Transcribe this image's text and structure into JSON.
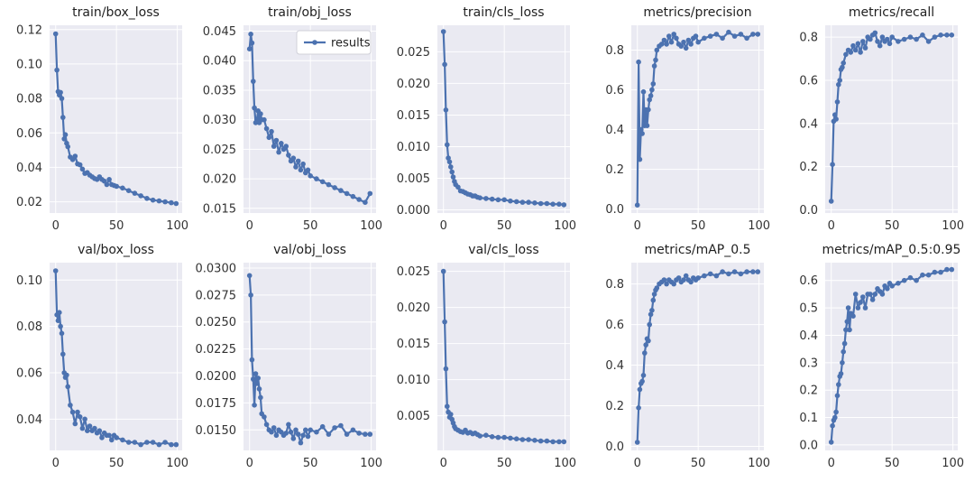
{
  "figure": {
    "legend_label": "results",
    "series_color": "#4c72b0",
    "background_color": "#eaeaf2",
    "grid_color": "#ffffff"
  },
  "chart_data": [
    {
      "type": "line",
      "title": "train/box_loss",
      "x": [
        0,
        1,
        2,
        3,
        4,
        5,
        6,
        7,
        8,
        9,
        10,
        12,
        14,
        16,
        18,
        20,
        22,
        24,
        26,
        28,
        30,
        32,
        34,
        36,
        38,
        40,
        42,
        44,
        46,
        48,
        50,
        55,
        60,
        65,
        70,
        75,
        80,
        85,
        90,
        95,
        99
      ],
      "values": [
        0.1175,
        0.0965,
        0.084,
        0.082,
        0.0835,
        0.08,
        0.069,
        0.0565,
        0.059,
        0.054,
        0.052,
        0.046,
        0.0445,
        0.0465,
        0.042,
        0.0415,
        0.039,
        0.0365,
        0.037,
        0.0355,
        0.0345,
        0.0335,
        0.033,
        0.0345,
        0.033,
        0.032,
        0.03,
        0.033,
        0.03,
        0.0295,
        0.029,
        0.028,
        0.0265,
        0.025,
        0.0235,
        0.022,
        0.021,
        0.0205,
        0.02,
        0.0195,
        0.019
      ],
      "xticks": [
        0,
        50,
        100
      ],
      "yticks": [
        0.02,
        0.04,
        0.06,
        0.08,
        0.1,
        0.12
      ],
      "ytick_labels": [
        "0.02",
        "0.04",
        "0.06",
        "0.08",
        "0.10",
        "0.12"
      ],
      "xlim": [
        -5,
        104
      ],
      "ylim": [
        0.0135,
        0.1225
      ],
      "legend": false
    },
    {
      "type": "line",
      "title": "train/obj_loss",
      "x": [
        0,
        1,
        2,
        3,
        4,
        5,
        6,
        7,
        8,
        9,
        10,
        12,
        14,
        16,
        18,
        20,
        22,
        24,
        26,
        28,
        30,
        32,
        34,
        36,
        38,
        40,
        42,
        44,
        46,
        48,
        50,
        55,
        60,
        65,
        70,
        75,
        80,
        85,
        90,
        95,
        99
      ],
      "values": [
        0.042,
        0.0445,
        0.043,
        0.0365,
        0.032,
        0.0295,
        0.03,
        0.0315,
        0.0295,
        0.031,
        0.03,
        0.03,
        0.0285,
        0.027,
        0.028,
        0.0255,
        0.0265,
        0.0245,
        0.026,
        0.025,
        0.0255,
        0.024,
        0.023,
        0.0235,
        0.022,
        0.023,
        0.0215,
        0.0225,
        0.021,
        0.0215,
        0.0205,
        0.02,
        0.0195,
        0.019,
        0.0185,
        0.018,
        0.0175,
        0.017,
        0.0165,
        0.016,
        0.0175
      ],
      "xticks": [
        0,
        50,
        100
      ],
      "yticks": [
        0.015,
        0.02,
        0.025,
        0.03,
        0.035,
        0.04,
        0.045
      ],
      "ytick_labels": [
        "0.015",
        "0.020",
        "0.025",
        "0.030",
        "0.035",
        "0.040",
        "0.045"
      ],
      "xlim": [
        -5,
        104
      ],
      "ylim": [
        0.0142,
        0.046
      ],
      "legend": true,
      "legend_position": "top-right"
    },
    {
      "type": "line",
      "title": "train/cls_loss",
      "x": [
        0,
        1,
        2,
        3,
        4,
        5,
        6,
        7,
        8,
        9,
        10,
        12,
        14,
        16,
        18,
        20,
        22,
        24,
        26,
        28,
        30,
        35,
        40,
        45,
        50,
        55,
        60,
        65,
        70,
        75,
        80,
        85,
        90,
        95,
        99
      ],
      "values": [
        0.0282,
        0.023,
        0.0158,
        0.0103,
        0.0082,
        0.0076,
        0.0068,
        0.006,
        0.0052,
        0.0045,
        0.004,
        0.0036,
        0.003,
        0.0029,
        0.0027,
        0.0025,
        0.0024,
        0.0022,
        0.0022,
        0.002,
        0.0019,
        0.0018,
        0.0017,
        0.0016,
        0.0016,
        0.0014,
        0.0013,
        0.0012,
        0.0012,
        0.0011,
        0.001,
        0.001,
        0.0009,
        0.0009,
        0.0008
      ],
      "xticks": [
        0,
        50,
        100
      ],
      "yticks": [
        0.0,
        0.005,
        0.01,
        0.015,
        0.02,
        0.025
      ],
      "ytick_labels": [
        "0.000",
        "0.005",
        "0.010",
        "0.015",
        "0.020",
        "0.025"
      ],
      "xlim": [
        -5,
        104
      ],
      "ylim": [
        -0.0005,
        0.0292
      ],
      "legend": false
    },
    {
      "type": "line",
      "title": "metrics/precision",
      "x": [
        0,
        1,
        2,
        3,
        4,
        5,
        6,
        7,
        8,
        9,
        10,
        11,
        12,
        13,
        14,
        15,
        16,
        18,
        20,
        22,
        24,
        26,
        28,
        30,
        32,
        34,
        36,
        38,
        40,
        42,
        44,
        46,
        48,
        50,
        55,
        60,
        65,
        70,
        75,
        80,
        85,
        90,
        95,
        99
      ],
      "values": [
        0.02,
        0.74,
        0.25,
        0.4,
        0.38,
        0.59,
        0.42,
        0.5,
        0.42,
        0.5,
        0.55,
        0.57,
        0.6,
        0.63,
        0.72,
        0.75,
        0.8,
        0.82,
        0.83,
        0.85,
        0.83,
        0.87,
        0.84,
        0.88,
        0.86,
        0.83,
        0.82,
        0.84,
        0.81,
        0.85,
        0.83,
        0.86,
        0.87,
        0.84,
        0.86,
        0.87,
        0.88,
        0.86,
        0.89,
        0.87,
        0.88,
        0.86,
        0.88,
        0.88
      ],
      "xticks": [
        0,
        50,
        100
      ],
      "yticks": [
        0.0,
        0.2,
        0.4,
        0.6,
        0.8
      ],
      "ytick_labels": [
        "0.0",
        "0.2",
        "0.4",
        "0.6",
        "0.8"
      ],
      "xlim": [
        -5,
        104
      ],
      "ylim": [
        -0.02,
        0.925
      ],
      "legend": false
    },
    {
      "type": "line",
      "title": "metrics/recall",
      "x": [
        0,
        1,
        2,
        3,
        4,
        5,
        6,
        7,
        8,
        9,
        10,
        12,
        14,
        16,
        18,
        20,
        22,
        24,
        26,
        28,
        30,
        32,
        34,
        36,
        38,
        40,
        42,
        44,
        46,
        48,
        50,
        55,
        60,
        65,
        70,
        75,
        80,
        85,
        90,
        95,
        99
      ],
      "values": [
        0.04,
        0.21,
        0.41,
        0.44,
        0.42,
        0.5,
        0.58,
        0.6,
        0.65,
        0.66,
        0.68,
        0.72,
        0.74,
        0.73,
        0.76,
        0.74,
        0.77,
        0.73,
        0.78,
        0.75,
        0.8,
        0.79,
        0.81,
        0.82,
        0.78,
        0.76,
        0.8,
        0.78,
        0.79,
        0.77,
        0.8,
        0.78,
        0.79,
        0.8,
        0.79,
        0.81,
        0.78,
        0.8,
        0.81,
        0.81,
        0.81
      ],
      "xticks": [
        0,
        50,
        100
      ],
      "yticks": [
        0.0,
        0.2,
        0.4,
        0.6,
        0.8
      ],
      "ytick_labels": [
        "0.0",
        "0.2",
        "0.4",
        "0.6",
        "0.8"
      ],
      "xlim": [
        -5,
        104
      ],
      "ylim": [
        -0.015,
        0.855
      ],
      "legend": false
    },
    {
      "type": "line",
      "title": "val/box_loss",
      "x": [
        0,
        1,
        2,
        3,
        4,
        5,
        6,
        7,
        8,
        9,
        10,
        12,
        14,
        16,
        18,
        20,
        22,
        24,
        26,
        28,
        30,
        32,
        34,
        36,
        38,
        40,
        42,
        44,
        46,
        48,
        50,
        55,
        60,
        65,
        70,
        75,
        80,
        85,
        90,
        95,
        99
      ],
      "values": [
        0.104,
        0.085,
        0.0825,
        0.086,
        0.08,
        0.077,
        0.068,
        0.06,
        0.058,
        0.059,
        0.054,
        0.046,
        0.043,
        0.038,
        0.043,
        0.041,
        0.036,
        0.04,
        0.035,
        0.037,
        0.035,
        0.036,
        0.034,
        0.035,
        0.032,
        0.034,
        0.033,
        0.033,
        0.031,
        0.033,
        0.032,
        0.031,
        0.03,
        0.03,
        0.029,
        0.03,
        0.03,
        0.029,
        0.03,
        0.029,
        0.029
      ],
      "xticks": [
        0,
        50,
        100
      ],
      "yticks": [
        0.04,
        0.06,
        0.08,
        0.1
      ],
      "ytick_labels": [
        "0.04",
        "0.06",
        "0.08",
        "0.10"
      ],
      "xlim": [
        -5,
        104
      ],
      "ylim": [
        0.0265,
        0.1075
      ],
      "legend": false
    },
    {
      "type": "line",
      "title": "val/obj_loss",
      "x": [
        0,
        1,
        2,
        3,
        4,
        5,
        6,
        7,
        8,
        9,
        10,
        12,
        14,
        16,
        18,
        20,
        22,
        24,
        26,
        28,
        30,
        32,
        34,
        36,
        38,
        40,
        42,
        44,
        46,
        48,
        50,
        55,
        60,
        65,
        70,
        75,
        80,
        85,
        90,
        95,
        99
      ],
      "values": [
        0.0293,
        0.0275,
        0.0215,
        0.0197,
        0.0173,
        0.0202,
        0.0193,
        0.0198,
        0.0188,
        0.018,
        0.0165,
        0.0162,
        0.0155,
        0.015,
        0.0148,
        0.0152,
        0.0145,
        0.015,
        0.0148,
        0.0145,
        0.0147,
        0.0155,
        0.0148,
        0.0142,
        0.015,
        0.0146,
        0.0138,
        0.0145,
        0.015,
        0.0144,
        0.015,
        0.0148,
        0.0153,
        0.0146,
        0.0152,
        0.0154,
        0.0146,
        0.015,
        0.0147,
        0.0146,
        0.0146
      ],
      "xticks": [
        0,
        50,
        100
      ],
      "yticks": [
        0.015,
        0.0175,
        0.02,
        0.0225,
        0.025,
        0.0275,
        0.03
      ],
      "ytick_labels": [
        "0.0150",
        "0.0175",
        "0.0200",
        "0.0225",
        "0.0250",
        "0.0275",
        "0.0300"
      ],
      "xlim": [
        -5,
        104
      ],
      "ylim": [
        0.0131,
        0.0305
      ],
      "legend": false
    },
    {
      "type": "line",
      "title": "val/cls_loss",
      "x": [
        0,
        1,
        2,
        3,
        4,
        5,
        6,
        7,
        8,
        9,
        10,
        12,
        14,
        16,
        18,
        20,
        22,
        24,
        26,
        28,
        30,
        35,
        40,
        45,
        50,
        55,
        60,
        65,
        70,
        75,
        80,
        85,
        90,
        95,
        99
      ],
      "values": [
        0.025,
        0.018,
        0.0115,
        0.0063,
        0.0055,
        0.0048,
        0.0052,
        0.0045,
        0.004,
        0.0035,
        0.0032,
        0.003,
        0.0028,
        0.0027,
        0.003,
        0.0026,
        0.0027,
        0.0025,
        0.0026,
        0.0024,
        0.0022,
        0.0023,
        0.0021,
        0.002,
        0.002,
        0.0019,
        0.0018,
        0.0017,
        0.0017,
        0.0016,
        0.0015,
        0.0015,
        0.0014,
        0.0014,
        0.0014
      ],
      "xticks": [
        0,
        50,
        100
      ],
      "yticks": [
        0.005,
        0.01,
        0.015,
        0.02,
        0.025
      ],
      "ytick_labels": [
        "0.005",
        "0.010",
        "0.015",
        "0.020",
        "0.025"
      ],
      "xlim": [
        -5,
        104
      ],
      "ylim": [
        0.0002,
        0.0262
      ],
      "legend": false
    },
    {
      "type": "line",
      "title": "metrics/mAP_0.5",
      "x": [
        0,
        1,
        2,
        3,
        4,
        5,
        6,
        7,
        8,
        9,
        10,
        11,
        12,
        13,
        14,
        15,
        16,
        18,
        20,
        22,
        24,
        26,
        28,
        30,
        32,
        34,
        36,
        38,
        40,
        42,
        44,
        46,
        48,
        50,
        55,
        60,
        65,
        70,
        75,
        80,
        85,
        90,
        95,
        99
      ],
      "values": [
        0.02,
        0.19,
        0.28,
        0.31,
        0.32,
        0.35,
        0.46,
        0.5,
        0.53,
        0.52,
        0.6,
        0.65,
        0.67,
        0.72,
        0.75,
        0.77,
        0.78,
        0.8,
        0.81,
        0.82,
        0.8,
        0.82,
        0.81,
        0.8,
        0.82,
        0.83,
        0.81,
        0.82,
        0.84,
        0.82,
        0.81,
        0.83,
        0.82,
        0.83,
        0.84,
        0.85,
        0.84,
        0.86,
        0.85,
        0.86,
        0.85,
        0.86,
        0.86,
        0.86
      ],
      "xticks": [
        0,
        50,
        100
      ],
      "yticks": [
        0.0,
        0.2,
        0.4,
        0.6,
        0.8
      ],
      "ytick_labels": [
        "0.0",
        "0.2",
        "0.4",
        "0.6",
        "0.8"
      ],
      "xlim": [
        -5,
        104
      ],
      "ylim": [
        -0.02,
        0.905
      ],
      "legend": false
    },
    {
      "type": "line",
      "title": "metrics/mAP_0.5:0.95",
      "x": [
        0,
        1,
        2,
        3,
        4,
        5,
        6,
        7,
        8,
        9,
        10,
        11,
        12,
        13,
        14,
        15,
        16,
        18,
        20,
        22,
        24,
        26,
        28,
        30,
        32,
        34,
        36,
        38,
        40,
        42,
        44,
        46,
        48,
        50,
        55,
        60,
        65,
        70,
        75,
        80,
        85,
        90,
        95,
        99
      ],
      "values": [
        0.01,
        0.07,
        0.09,
        0.1,
        0.12,
        0.18,
        0.22,
        0.25,
        0.26,
        0.3,
        0.34,
        0.37,
        0.42,
        0.45,
        0.5,
        0.42,
        0.48,
        0.47,
        0.55,
        0.5,
        0.52,
        0.54,
        0.5,
        0.55,
        0.55,
        0.53,
        0.55,
        0.57,
        0.56,
        0.55,
        0.58,
        0.57,
        0.59,
        0.58,
        0.59,
        0.6,
        0.61,
        0.6,
        0.62,
        0.62,
        0.63,
        0.63,
        0.64,
        0.64
      ],
      "xticks": [
        0,
        50,
        100
      ],
      "yticks": [
        0.0,
        0.1,
        0.2,
        0.3,
        0.4,
        0.5,
        0.6
      ],
      "ytick_labels": [
        "0.0",
        "0.1",
        "0.2",
        "0.3",
        "0.4",
        "0.5",
        "0.6"
      ],
      "xlim": [
        -5,
        104
      ],
      "ylim": [
        -0.02,
        0.665
      ],
      "legend": false
    }
  ]
}
